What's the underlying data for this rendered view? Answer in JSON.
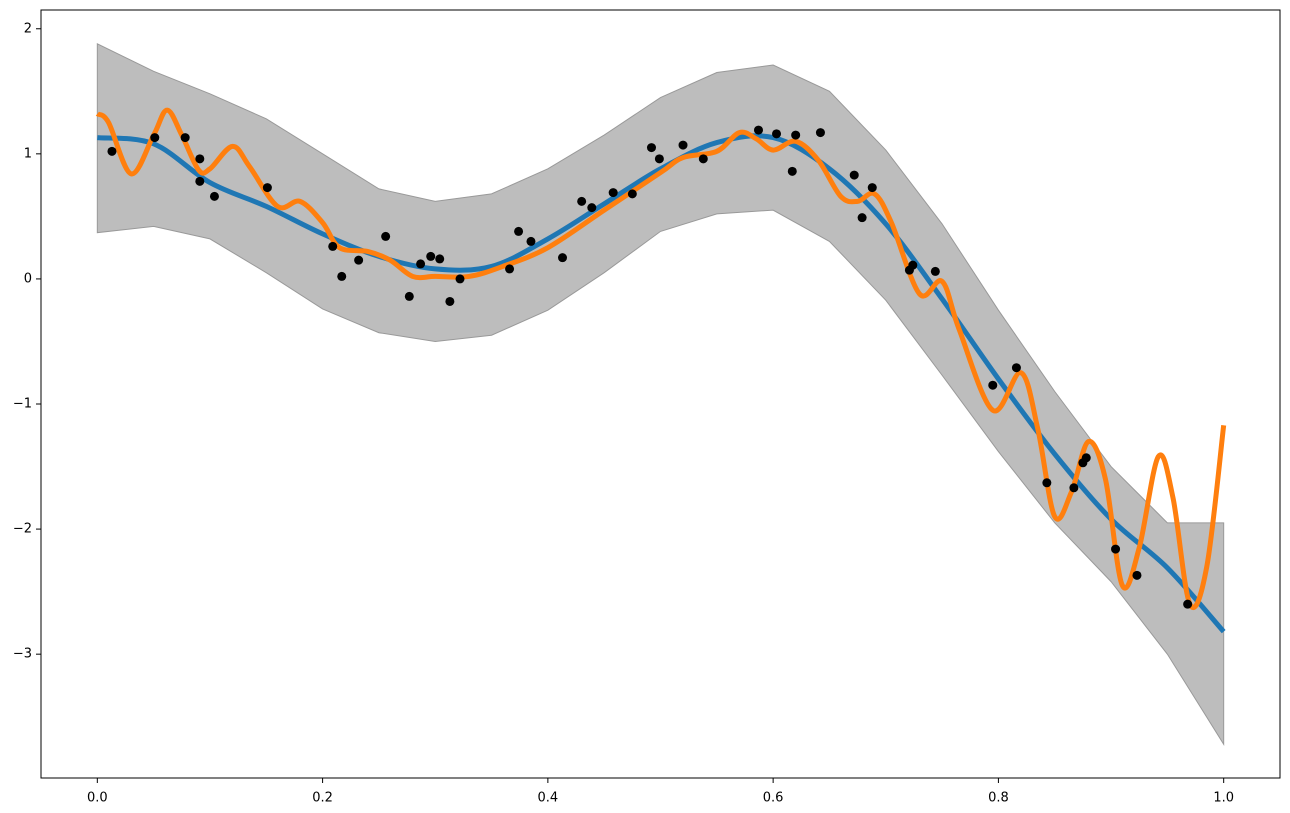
{
  "chart_data": {
    "type": "line",
    "xlim": [
      -0.05,
      1.05
    ],
    "ylim": [
      -3.99,
      2.15
    ],
    "xticks": [
      {
        "value": 0,
        "label": "0.0"
      },
      {
        "value": 0.2,
        "label": "0.2"
      },
      {
        "value": 0.4,
        "label": "0.4"
      },
      {
        "value": 0.6,
        "label": "0.6"
      },
      {
        "value": 0.8,
        "label": "0.8"
      },
      {
        "value": 1,
        "label": "1.0"
      }
    ],
    "yticks": [
      {
        "value": -3,
        "label": "−3"
      },
      {
        "value": -2,
        "label": "−2"
      },
      {
        "value": -1,
        "label": "−1"
      },
      0,
      1,
      2
    ],
    "band": {
      "color": "#bdbdbd",
      "edge_color": "#999999",
      "x": [
        0,
        0.05,
        0.1,
        0.15,
        0.2,
        0.25,
        0.3,
        0.35,
        0.4,
        0.45,
        0.5,
        0.55,
        0.6,
        0.65,
        0.7,
        0.75,
        0.8,
        0.85,
        0.9,
        0.95,
        1.0
      ],
      "upper": [
        1.88,
        1.66,
        1.48,
        1.28,
        1.0,
        0.72,
        0.62,
        0.68,
        0.88,
        1.15,
        1.45,
        1.65,
        1.71,
        1.5,
        1.03,
        0.44,
        -0.25,
        -0.9,
        -1.5,
        -1.95,
        -1.95
      ],
      "lower": [
        0.37,
        0.42,
        0.32,
        0.05,
        -0.24,
        -0.43,
        -0.5,
        -0.45,
        -0.25,
        0.05,
        0.38,
        0.52,
        0.55,
        0.3,
        -0.17,
        -0.77,
        -1.38,
        -1.95,
        -2.42,
        -3.0,
        -3.72
      ]
    },
    "series": [
      {
        "type": "line",
        "color": "#1f77b4",
        "x": [
          0,
          0.05,
          0.1,
          0.15,
          0.2,
          0.25,
          0.3,
          0.35,
          0.4,
          0.45,
          0.5,
          0.55,
          0.6,
          0.65,
          0.7,
          0.75,
          0.8,
          0.85,
          0.9,
          0.95,
          1.0
        ],
        "values": [
          1.13,
          1.08,
          0.77,
          0.58,
          0.36,
          0.18,
          0.08,
          0.1,
          0.32,
          0.6,
          0.88,
          1.09,
          1.13,
          0.88,
          0.44,
          -0.16,
          -0.8,
          -1.4,
          -1.92,
          -2.31,
          -2.82
        ]
      },
      {
        "type": "line",
        "color": "#ff7f0e",
        "x": [
          0,
          0.01,
          0.03,
          0.05,
          0.062,
          0.075,
          0.09,
          0.1,
          0.12,
          0.135,
          0.16,
          0.18,
          0.2,
          0.215,
          0.24,
          0.26,
          0.28,
          0.3,
          0.33,
          0.36,
          0.4,
          0.45,
          0.5,
          0.52,
          0.55,
          0.57,
          0.585,
          0.6,
          0.62,
          0.64,
          0.66,
          0.675,
          0.69,
          0.705,
          0.73,
          0.75,
          0.765,
          0.795,
          0.82,
          0.835,
          0.85,
          0.865,
          0.88,
          0.895,
          0.91,
          0.925,
          0.942,
          0.955,
          0.97,
          0.985,
          1.0
        ],
        "values": [
          1.32,
          1.25,
          0.84,
          1.15,
          1.35,
          1.15,
          0.87,
          0.88,
          1.06,
          0.9,
          0.58,
          0.62,
          0.45,
          0.25,
          0.22,
          0.15,
          0.02,
          0.02,
          0.02,
          0.1,
          0.25,
          0.55,
          0.85,
          0.97,
          1.02,
          1.17,
          1.12,
          1.03,
          1.1,
          0.95,
          0.66,
          0.62,
          0.68,
          0.45,
          -0.12,
          -0.02,
          -0.4,
          -1.05,
          -0.75,
          -1.2,
          -1.9,
          -1.7,
          -1.3,
          -1.6,
          -2.45,
          -2.15,
          -1.42,
          -1.75,
          -2.6,
          -2.3,
          -1.17
        ]
      },
      {
        "type": "scatter",
        "color": "#000000",
        "x": [
          0.013,
          0.051,
          0.078,
          0.091,
          0.091,
          0.104,
          0.151,
          0.209,
          0.217,
          0.232,
          0.256,
          0.277,
          0.287,
          0.296,
          0.304,
          0.313,
          0.322,
          0.366,
          0.374,
          0.385,
          0.413,
          0.43,
          0.439,
          0.458,
          0.475,
          0.492,
          0.499,
          0.52,
          0.538,
          0.587,
          0.603,
          0.617,
          0.62,
          0.642,
          0.672,
          0.679,
          0.688,
          0.721,
          0.724,
          0.744,
          0.795,
          0.816,
          0.843,
          0.867,
          0.875,
          0.878,
          0.904,
          0.923,
          0.968
        ],
        "values": [
          1.02,
          1.13,
          1.13,
          0.96,
          0.78,
          0.66,
          0.73,
          0.26,
          0.02,
          0.15,
          0.34,
          -0.14,
          0.12,
          0.18,
          0.16,
          -0.18,
          0.0,
          0.08,
          0.38,
          0.3,
          0.17,
          0.62,
          0.57,
          0.69,
          0.68,
          1.05,
          0.96,
          1.07,
          0.96,
          1.19,
          1.16,
          0.86,
          1.15,
          1.17,
          0.83,
          0.49,
          0.73,
          0.07,
          0.11,
          0.06,
          -0.85,
          -0.71,
          -1.63,
          -1.67,
          -1.47,
          -1.43,
          -2.16,
          -2.37,
          -2.6
        ]
      }
    ]
  }
}
